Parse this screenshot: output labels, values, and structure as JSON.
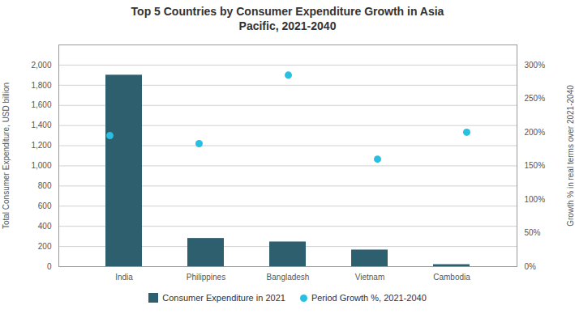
{
  "chart_data": {
    "type": "bar",
    "title": "Top 5 Countries by Consumer Expenditure Growth in Asia\nPacific, 2021-2040",
    "categories": [
      "India",
      "Philippines",
      "Bangladesh",
      "Vietnam",
      "Cambodia"
    ],
    "series": [
      {
        "name": "Consumer Expenditure in 2021",
        "type": "bar",
        "color": "#2E5F6E",
        "values": [
          1900,
          280,
          245,
          165,
          20
        ]
      },
      {
        "name": "Period Growth %, 2021-2040",
        "type": "scatter",
        "color": "#29BFE0",
        "marker": "o",
        "axis": "y2",
        "values": [
          195,
          183,
          285,
          160,
          200
        ]
      }
    ],
    "ylabel": "Total Consumer Expenditure, USD billion",
    "y2label": "Growth % in real terms over 2021-2040",
    "ylim": [
      0,
      2200
    ],
    "yticks": [
      0,
      200,
      400,
      600,
      800,
      {
        "value": 1000,
        "label": "1,000"
      },
      {
        "value": 1200,
        "label": "1,200"
      },
      {
        "value": 1400,
        "label": "1,400"
      },
      {
        "value": 1600,
        "label": "1,600"
      },
      {
        "value": 1800,
        "label": "1,800"
      },
      {
        "value": 2000,
        "label": "2,000"
      }
    ],
    "y2lim": [
      0,
      330
    ],
    "y2ticks": [
      {
        "value": 0,
        "label": "0%"
      },
      {
        "value": 50,
        "label": "50%"
      },
      {
        "value": 100,
        "label": "100%"
      },
      {
        "value": 150,
        "label": "150%"
      },
      {
        "value": 200,
        "label": "200%"
      },
      {
        "value": 250,
        "label": "250%"
      },
      {
        "value": 300,
        "label": "300%"
      }
    ],
    "grid": true,
    "legend": "bottom"
  }
}
